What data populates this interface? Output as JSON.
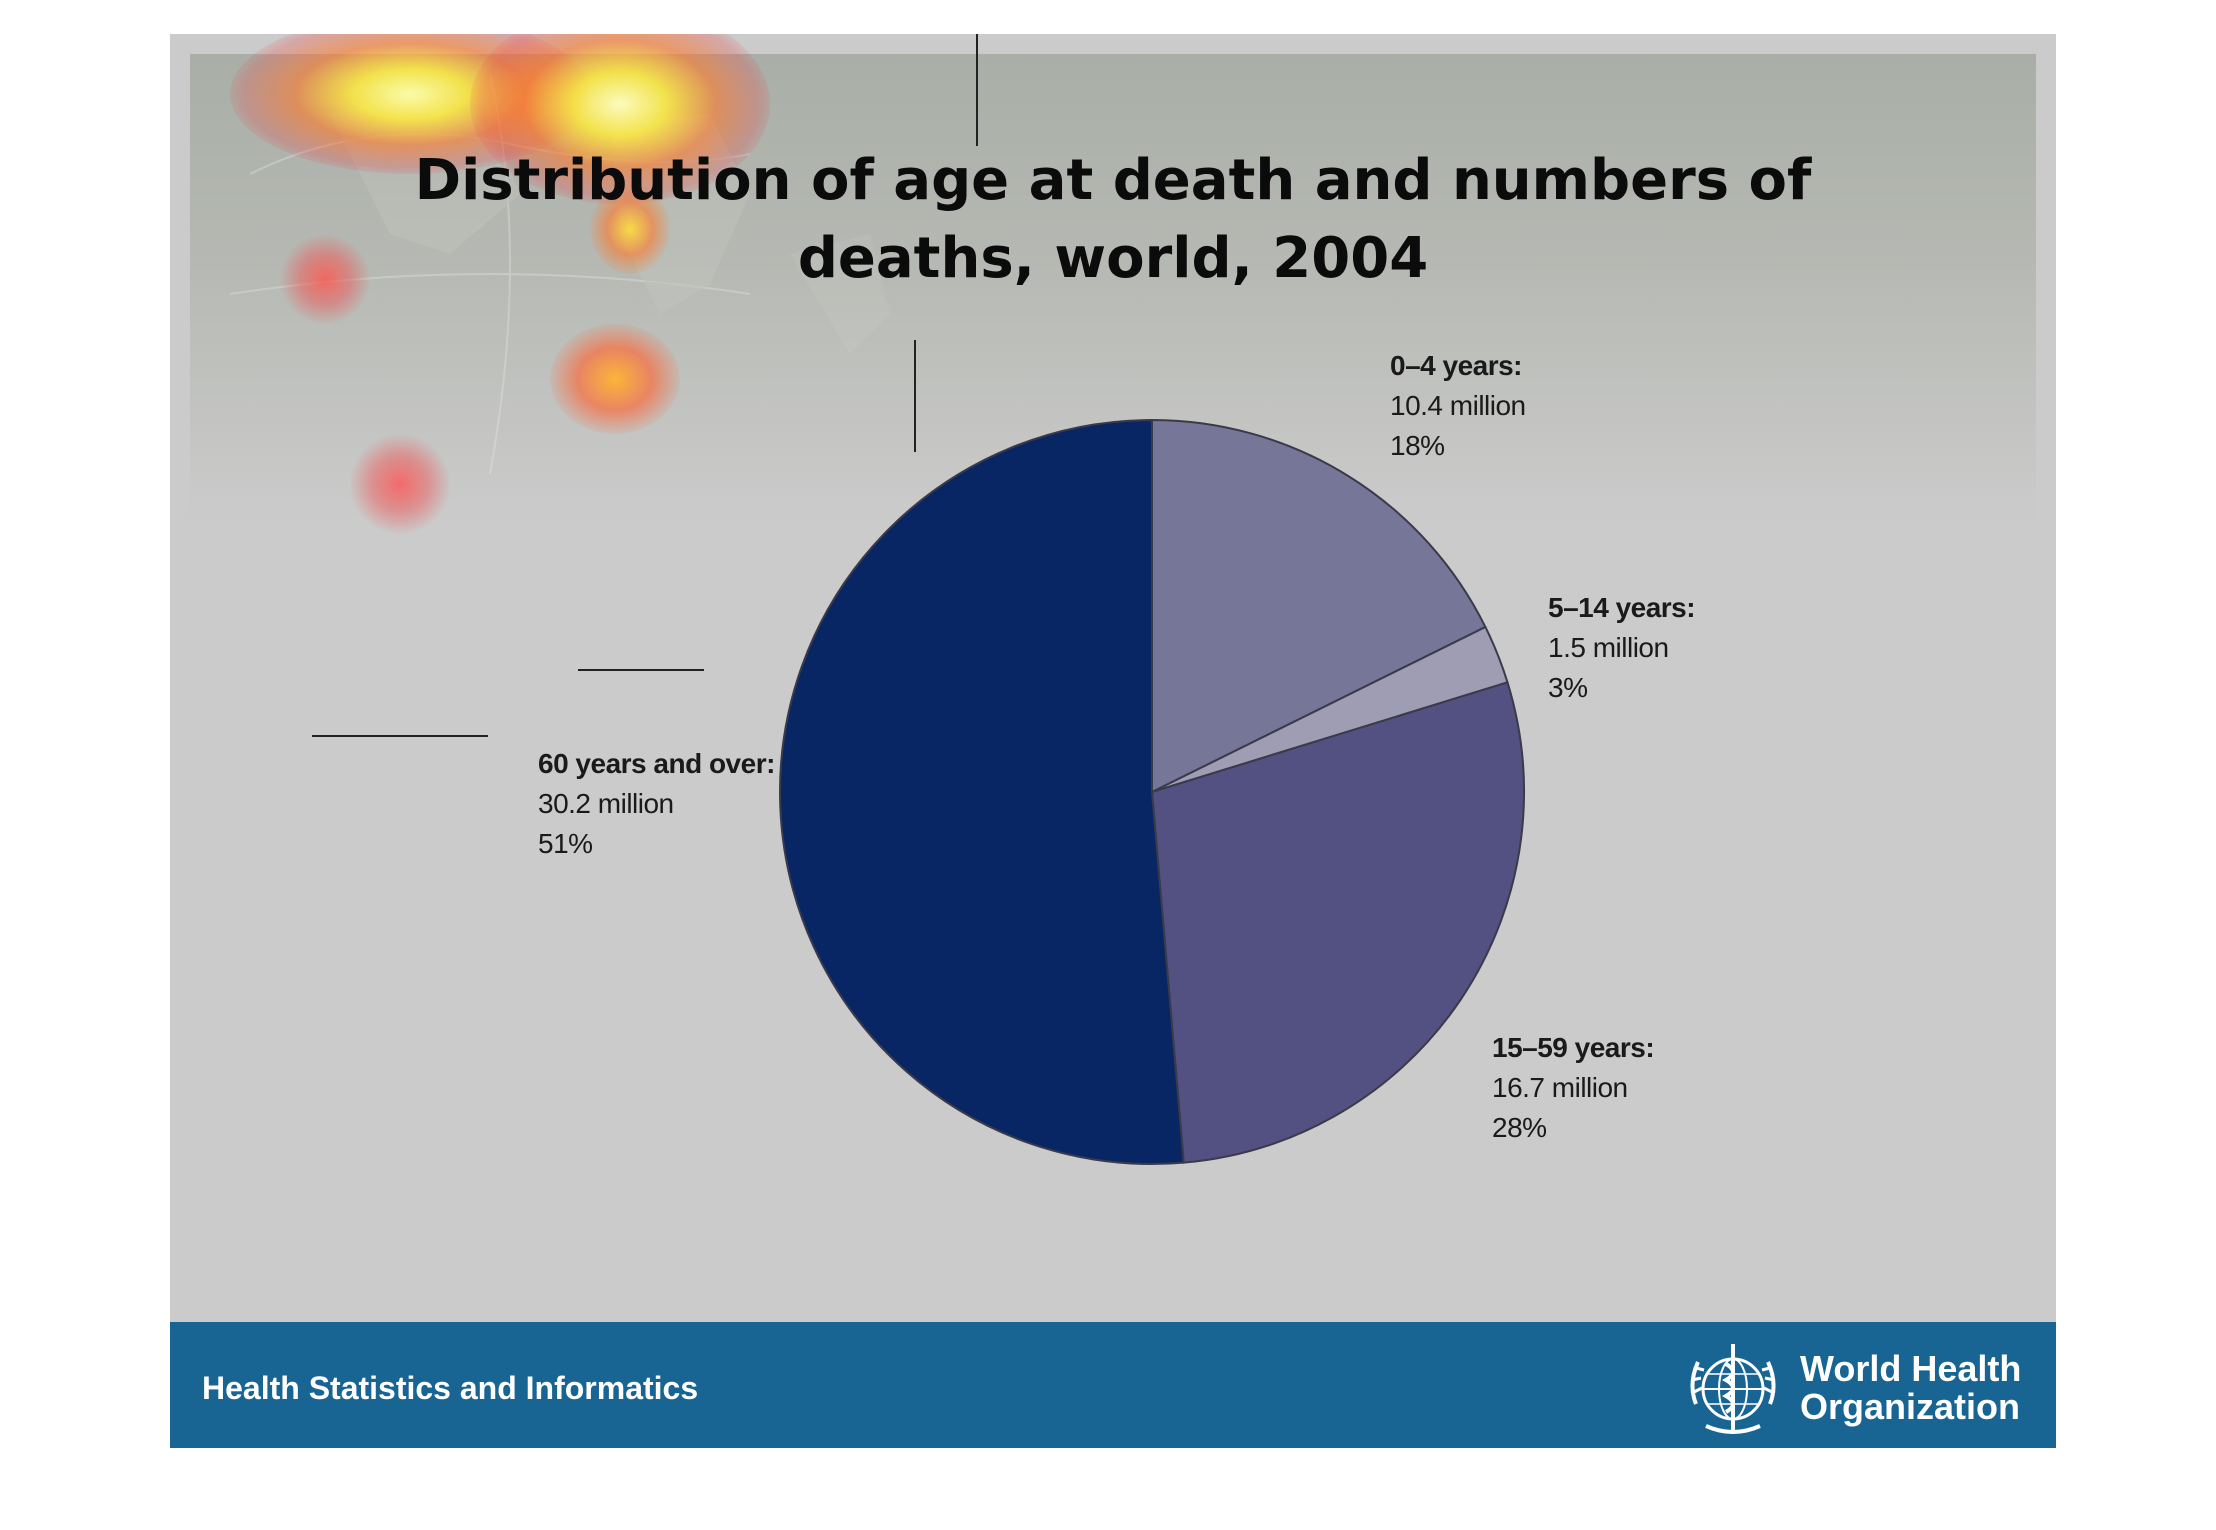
{
  "title": {
    "line1": "Distribution of age at death and numbers of",
    "line2": "deaths, world, 2004"
  },
  "chart_data": {
    "type": "pie",
    "title": "Distribution of age at death and numbers of deaths, world, 2004",
    "slices": [
      {
        "label": "0–4 years:",
        "value_text": "10.4 million",
        "percent_text": "18%",
        "value": 10.4,
        "percent": 18,
        "color": "#767698"
      },
      {
        "label": "5–14 years:",
        "value_text": "1.5 million",
        "percent_text": "3%",
        "value": 1.5,
        "percent": 3,
        "color": "#9e9db4"
      },
      {
        "label": "15–59 years:",
        "value_text": "16.7 million",
        "percent_text": "28%",
        "value": 16.7,
        "percent": 28,
        "color": "#535181"
      },
      {
        "label": "60 years and over:",
        "value_text": "30.2 million",
        "percent_text": "51%",
        "value": 30.2,
        "percent": 51,
        "color": "#092664"
      }
    ],
    "start_angle": "12 o'clock",
    "direction": "clockwise"
  },
  "footer": {
    "left_text": "Health Statistics and Informatics",
    "org_line1": "World Health",
    "org_line2": "Organization"
  },
  "colors": {
    "slide_bg": "#cbcbcb",
    "footer_bg": "#186593",
    "title_text": "#0b0b0b"
  }
}
